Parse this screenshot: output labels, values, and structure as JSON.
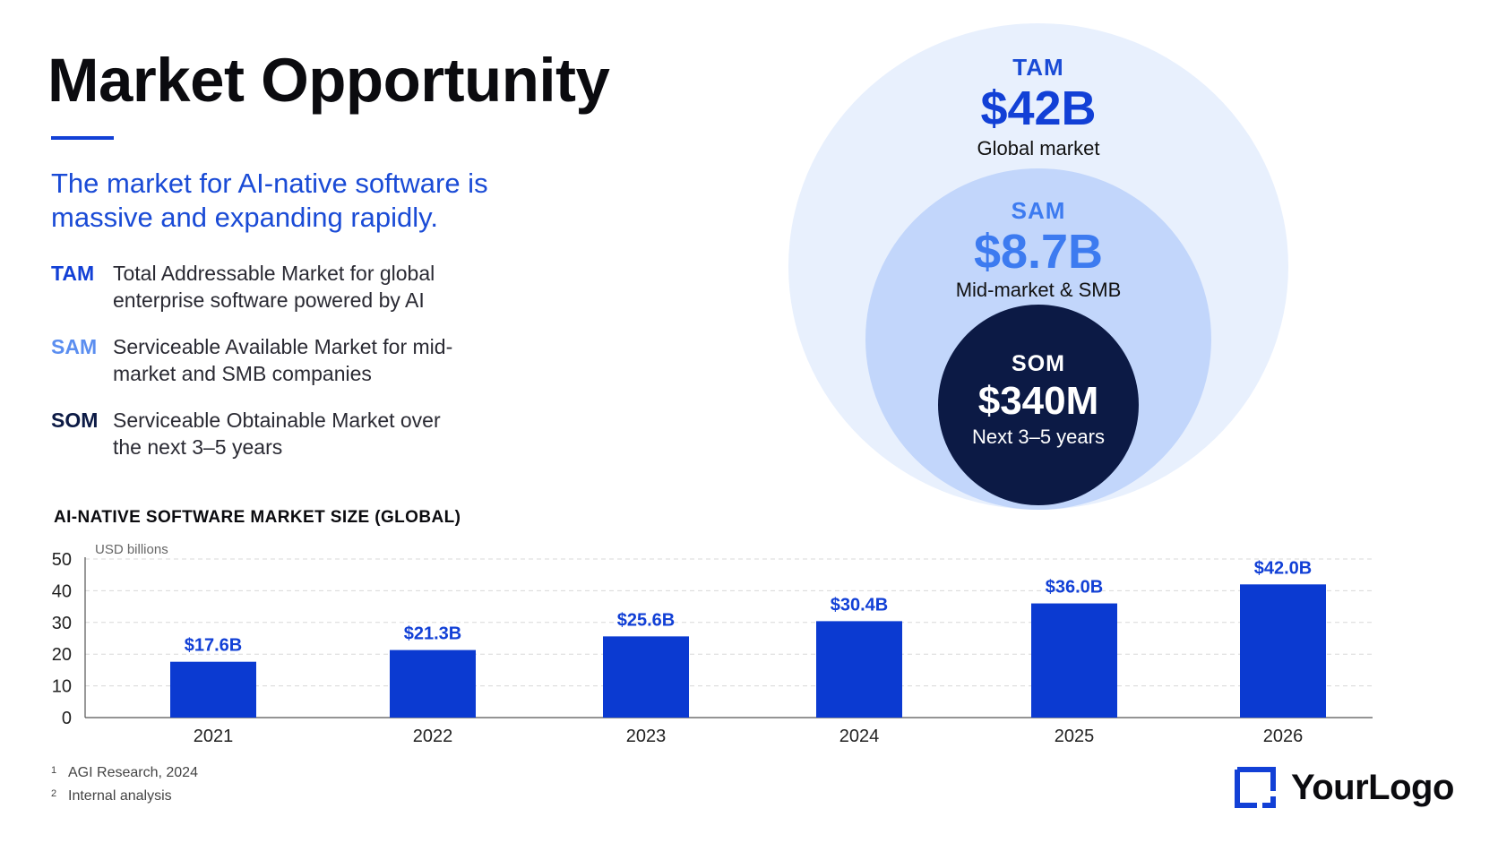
{
  "slide": {
    "title": "Market Opportunity",
    "subtitle": "The market for AI-native software is massive and expanding rapidly.",
    "definitions": [
      {
        "key": "TAM",
        "text": "Total Addressable Market for global enterprise software powered by AI"
      },
      {
        "key": "SAM",
        "text": "Serviceable Available Market for mid-market and SMB companies"
      },
      {
        "key": "SOM",
        "text": "Serviceable Obtainable Market over the next 3–5 years"
      }
    ],
    "circles": {
      "tam": {
        "label": "TAM",
        "value": "$42B",
        "desc": "Global market"
      },
      "sam": {
        "label": "SAM",
        "value": "$8.7B",
        "desc": "Mid-market & SMB"
      },
      "som": {
        "label": "SOM",
        "value": "$340M",
        "desc": "Next 3–5 years"
      }
    },
    "footnotes": [
      {
        "n": "1",
        "text": "AGI Research, 2024"
      },
      {
        "n": "2",
        "text": "Internal analysis"
      }
    ],
    "logo": {
      "text": "YourLogo",
      "icon": "logo-bracket-icon"
    }
  },
  "colors": {
    "accent": "#1240d6",
    "bar": "#0b3ad1",
    "sam": "#3d7bf0",
    "som": "#0c1a45",
    "tam_bg": "#e8f0fd",
    "sam_bg": "#c2d6fb"
  },
  "chart_data": {
    "type": "bar",
    "title": "AI-NATIVE SOFTWARE MARKET SIZE (GLOBAL)",
    "ylabel": "USD billions",
    "categories": [
      "2021",
      "2022",
      "2023",
      "2024",
      "2025",
      "2026"
    ],
    "values": [
      17.6,
      21.3,
      25.6,
      30.4,
      36.0,
      42.0
    ],
    "data_labels": [
      "$17.6B",
      "$21.3B",
      "$25.6B",
      "$30.4B",
      "$36.0B",
      "$42.0B"
    ],
    "ylim": [
      0,
      50
    ],
    "yticks": [
      0,
      10,
      20,
      30,
      40,
      50
    ],
    "grid": true
  }
}
